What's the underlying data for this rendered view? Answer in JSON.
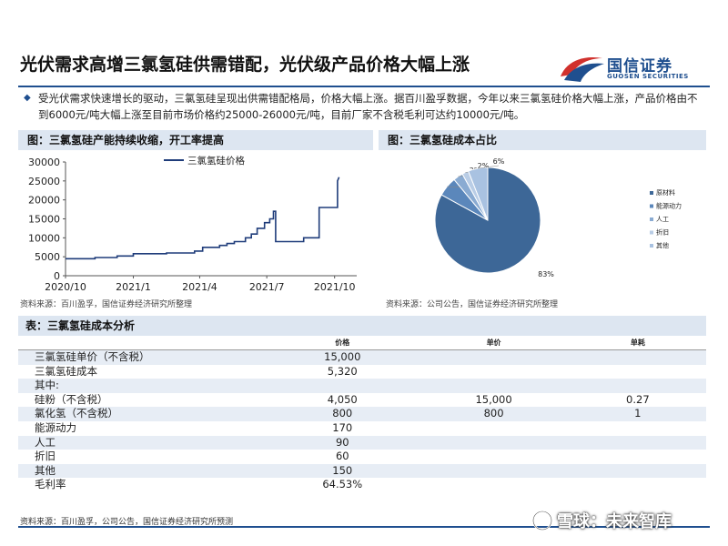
{
  "page": {
    "title": "光伏需求高增三氯氢硅供需错配，光伏级产品价格大幅上涨",
    "logo_cn": "国信证券",
    "logo_en": "GUOSEN SECURITIES",
    "bullet": "受光伏需求快速增长的驱动，三氯氢硅呈现出供需错配格局，价格大幅上涨。据百川盈孚数据，今年以来三氯氢硅价格大幅上涨，产品价格由不到6000元/吨大幅上涨至目前市场价格约25000-26000元/吨，目前厂家不含税毛利可达约10000元/吨。",
    "watermark": "雪球：未来智库",
    "bottom_source": "资料来源：百川盈孚，公司公告，国信证券经济研究所预测",
    "colors": {
      "brand": "#1f4f8f",
      "header_fill": "#dde6f1",
      "accent_red": "#d0312d"
    }
  },
  "line_panel": {
    "header": "图：三氯氢硅产能持续收缩，开工率提高",
    "source": "资料来源：百川盈孚，国信证券经济研究所整理"
  },
  "pie_panel": {
    "header": "图：三氯氢硅成本占比",
    "source": "资料来源：公司公告，国信证券经济研究所整理"
  },
  "chart_data": [
    {
      "type": "line",
      "legend": "三氯氢硅价格",
      "legend_position": "top-center",
      "x_tick_labels": [
        "2020/10",
        "2021/1",
        "2021/4",
        "2021/7",
        "2021/10"
      ],
      "x_range": [
        "2020-10-01",
        "2021-10-31"
      ],
      "ylim": [
        0,
        30000
      ],
      "y_ticks": [
        0,
        5000,
        10000,
        15000,
        20000,
        25000,
        30000
      ],
      "series": [
        {
          "name": "三氯氢硅价格",
          "color": "#1f3c7a",
          "points": [
            [
              "2020-10-01",
              4500
            ],
            [
              "2020-11-10",
              4500
            ],
            [
              "2020-11-10",
              4800
            ],
            [
              "2020-12-10",
              4800
            ],
            [
              "2020-12-10",
              5200
            ],
            [
              "2021-01-01",
              5200
            ],
            [
              "2021-01-01",
              5800
            ],
            [
              "2021-02-15",
              5800
            ],
            [
              "2021-02-15",
              6000
            ],
            [
              "2021-03-25",
              6000
            ],
            [
              "2021-03-25",
              6500
            ],
            [
              "2021-04-05",
              6500
            ],
            [
              "2021-04-05",
              7500
            ],
            [
              "2021-04-28",
              7500
            ],
            [
              "2021-04-28",
              8000
            ],
            [
              "2021-05-08",
              8000
            ],
            [
              "2021-05-08",
              8500
            ],
            [
              "2021-05-18",
              8500
            ],
            [
              "2021-05-18",
              9000
            ],
            [
              "2021-06-02",
              9000
            ],
            [
              "2021-06-02",
              10000
            ],
            [
              "2021-06-10",
              10000
            ],
            [
              "2021-06-10",
              11000
            ],
            [
              "2021-06-18",
              11000
            ],
            [
              "2021-06-18",
              12500
            ],
            [
              "2021-06-28",
              12500
            ],
            [
              "2021-06-28",
              14000
            ],
            [
              "2021-07-05",
              14000
            ],
            [
              "2021-07-05",
              15000
            ],
            [
              "2021-07-10",
              15000
            ],
            [
              "2021-07-10",
              17000
            ],
            [
              "2021-07-13",
              17000
            ],
            [
              "2021-07-13",
              9000
            ],
            [
              "2021-08-20",
              9000
            ],
            [
              "2021-08-20",
              10000
            ],
            [
              "2021-09-10",
              10000
            ],
            [
              "2021-09-10",
              18000
            ],
            [
              "2021-10-05",
              18000
            ],
            [
              "2021-10-05",
              25000
            ],
            [
              "2021-10-07",
              26000
            ]
          ]
        }
      ]
    },
    {
      "type": "pie",
      "legend_position": "right",
      "slices": [
        {
          "name": "原材料",
          "value": 83,
          "label": "83%",
          "color": "#3d6797"
        },
        {
          "name": "能源动力",
          "value": 6,
          "label": "6%",
          "color": "#5b87bb"
        },
        {
          "name": "人工",
          "value": 3,
          "label": "3%",
          "color": "#8aabd2"
        },
        {
          "name": "折旧",
          "value": 2,
          "label": "2%",
          "color": "#b9cde6"
        },
        {
          "name": "其他",
          "value": 6,
          "label": "6%",
          "color": "#a9c2e1"
        }
      ]
    },
    {
      "type": "table",
      "header": "表：三氯氢硅成本分析",
      "columns": [
        "",
        "价格",
        "单价",
        "单耗"
      ],
      "rows": [
        [
          "三氯氢硅单价（不含税）",
          "15,000",
          "",
          ""
        ],
        [
          "三氯氢硅成本",
          "5,320",
          "",
          ""
        ],
        [
          "其中:",
          "",
          "",
          ""
        ],
        [
          "硅粉（不含税）",
          "4,050",
          "15,000",
          "0.27"
        ],
        [
          "氯化氢（不含税）",
          "800",
          "800",
          "1"
        ],
        [
          "能源动力",
          "170",
          "",
          ""
        ],
        [
          "人工",
          "90",
          "",
          ""
        ],
        [
          "折旧",
          "60",
          "",
          ""
        ],
        [
          "其他",
          "150",
          "",
          ""
        ],
        [
          "毛利率",
          "64.53%",
          "",
          ""
        ]
      ],
      "indent": [
        0,
        0,
        0,
        2,
        2,
        2,
        2,
        2,
        2,
        0
      ]
    }
  ]
}
